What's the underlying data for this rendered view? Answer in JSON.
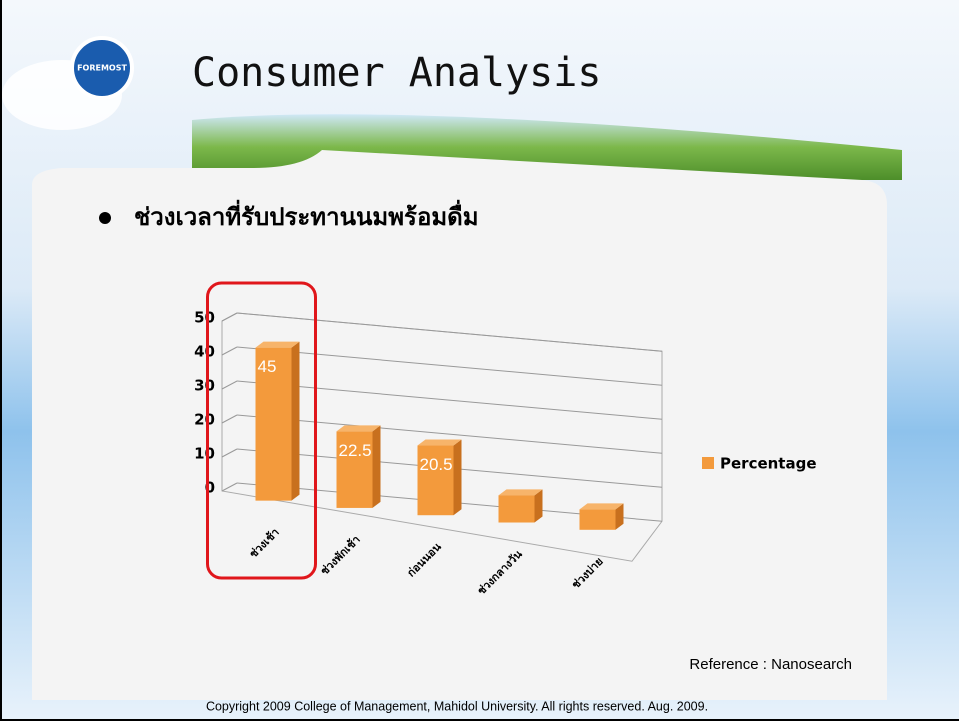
{
  "slide": {
    "logo": "FOREMOST",
    "title": "Consumer Analysis",
    "bullet": "ช่วงเวลาที่รับประทานนมพร้อมดื่ม",
    "reference": "Reference : Nanosearch",
    "copyright": "Copyright 2009 College of Management, Mahidol University. All rights reserved. Aug. 2009."
  },
  "chart_data": {
    "type": "bar3d",
    "categories": [
      "ช่วงเช้า",
      "ช่วงพักเช้า",
      "ก่อนนอน",
      "ช่วงกลางวัน",
      "ช่วงบ่าย"
    ],
    "series": [
      {
        "name": "Percentage",
        "color": "#f39a3c",
        "values": [
          45,
          22.5,
          20.5,
          8,
          6
        ],
        "value_labels": [
          "45",
          "22.5",
          "20.5",
          null,
          null
        ]
      }
    ],
    "ylim": [
      0,
      50
    ],
    "yticks": [
      0,
      10,
      20,
      30,
      40,
      50
    ],
    "grid": true,
    "legend": "right",
    "highlight_category": 0
  }
}
